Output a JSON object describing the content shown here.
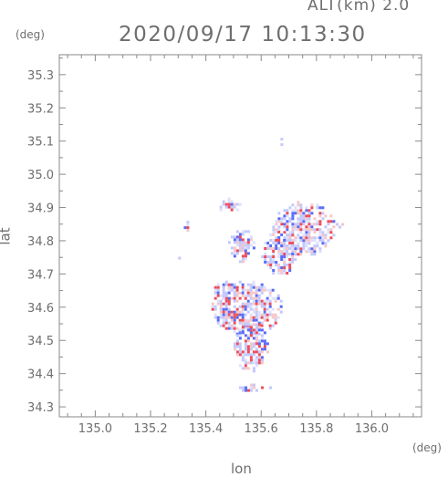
{
  "header": {
    "altitude": "ALT(km) 2.0",
    "timestamp": "2020/09/17 10:13:30"
  },
  "axes": {
    "y_unit": "(deg)",
    "x_unit": "(deg)",
    "x_label": "lon",
    "y_label": "lat",
    "x_ticks": [
      "135.0",
      "135.2",
      "135.4",
      "135.6",
      "135.8",
      "136.0"
    ],
    "y_ticks": [
      "34.3",
      "34.4",
      "34.5",
      "34.6",
      "34.7",
      "34.8",
      "34.9",
      "35.0",
      "35.1",
      "35.2",
      "35.3"
    ]
  },
  "chart_data": {
    "type": "heatmap",
    "xlabel": "lon",
    "ylabel": "lat",
    "x_range": [
      134.87,
      136.18
    ],
    "y_range": [
      34.27,
      35.36
    ],
    "x_ticks": [
      135.0,
      135.2,
      135.4,
      135.6,
      135.8,
      136.0
    ],
    "y_ticks": [
      34.3,
      34.4,
      34.5,
      34.6,
      34.7,
      34.8,
      34.9,
      35.0,
      35.1,
      35.2,
      35.3
    ],
    "grid": false,
    "colors": {
      "positive": "#ee4d5a",
      "negative": "#5a6cf5",
      "light_positive": "#f6c6c8",
      "light_negative": "#c3c8fb"
    },
    "echo_regions": [
      {
        "lon": [
          135.42,
          135.67
        ],
        "lat": [
          34.52,
          34.68
        ]
      },
      {
        "lon": [
          135.5,
          135.62
        ],
        "lat": [
          34.41,
          34.56
        ]
      },
      {
        "lon": [
          135.42,
          135.52
        ],
        "lat": [
          34.63,
          34.68
        ]
      },
      {
        "lon": [
          135.64,
          135.86
        ],
        "lat": [
          34.76,
          34.92
        ]
      },
      {
        "lon": [
          135.6,
          135.72
        ],
        "lat": [
          34.7,
          34.83
        ]
      },
      {
        "lon": [
          135.48,
          135.57
        ],
        "lat": [
          34.74,
          34.84
        ]
      },
      {
        "lon": [
          135.44,
          135.52
        ],
        "lat": [
          34.89,
          34.93
        ]
      },
      {
        "lon": [
          135.51,
          135.63
        ],
        "lat": [
          34.35,
          34.37
        ]
      },
      {
        "lon": [
          135.66,
          135.68
        ],
        "lat": [
          35.09,
          35.11
        ]
      },
      {
        "lon": [
          135.28,
          135.3
        ],
        "lat": [
          34.74,
          34.76
        ]
      },
      {
        "lon": [
          135.32,
          135.34
        ],
        "lat": [
          34.83,
          34.86
        ]
      },
      {
        "lon": [
          135.86,
          135.89
        ],
        "lat": [
          34.84,
          34.87
        ]
      }
    ]
  }
}
